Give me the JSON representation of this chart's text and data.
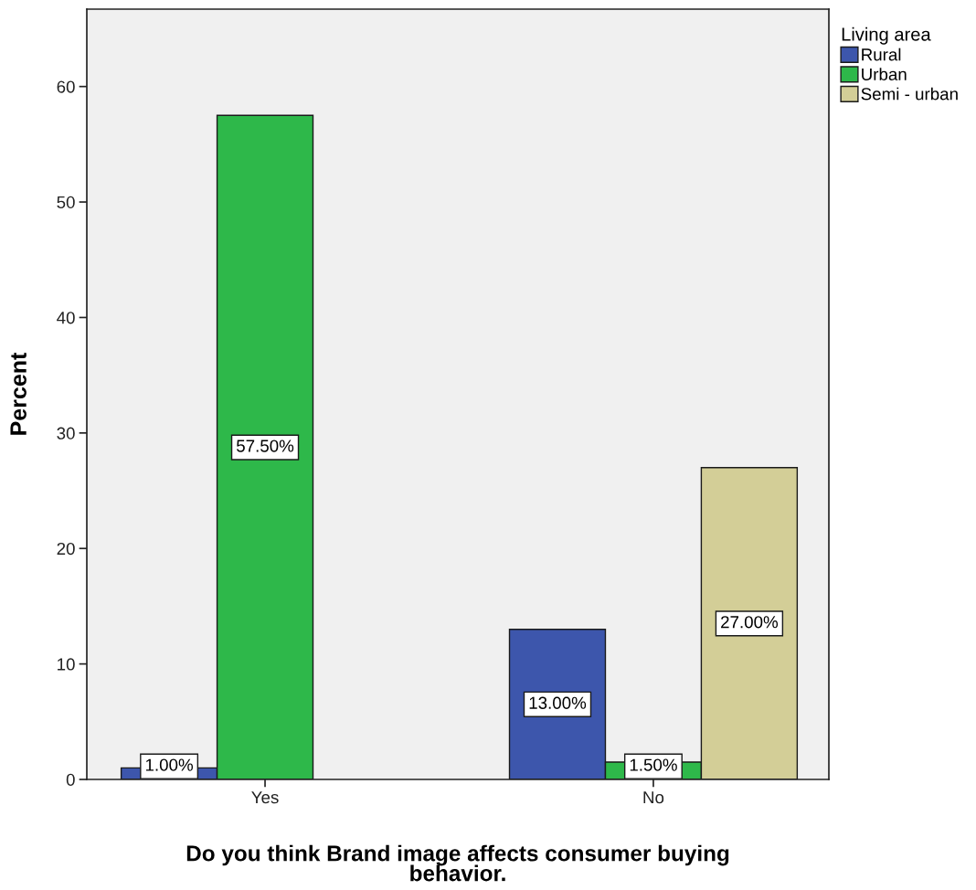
{
  "chart_data": {
    "type": "bar",
    "xlabel": "Do you think Brand image affects consumer buying\nbehavior.",
    "ylabel": "Percent",
    "legend_title": "Living area",
    "categories": [
      "Yes",
      "No"
    ],
    "series": [
      {
        "name": "Rural",
        "color": "#3d56ac",
        "values": [
          1.0,
          13.0
        ],
        "value_labels": [
          "1.00%",
          "13.00%"
        ]
      },
      {
        "name": "Urban",
        "color": "#2eb84a",
        "values": [
          57.5,
          1.5
        ],
        "value_labels": [
          "57.50%",
          "1.50%"
        ]
      },
      {
        "name": "Semi - urban",
        "color": "#d3ce97",
        "values": [
          null,
          27.0
        ],
        "value_labels": [
          null,
          "27.00%"
        ]
      }
    ],
    "ylim": [
      0,
      66.7
    ],
    "yticks": [
      0,
      10,
      20,
      30,
      40,
      50,
      60
    ],
    "legend": "top right"
  }
}
